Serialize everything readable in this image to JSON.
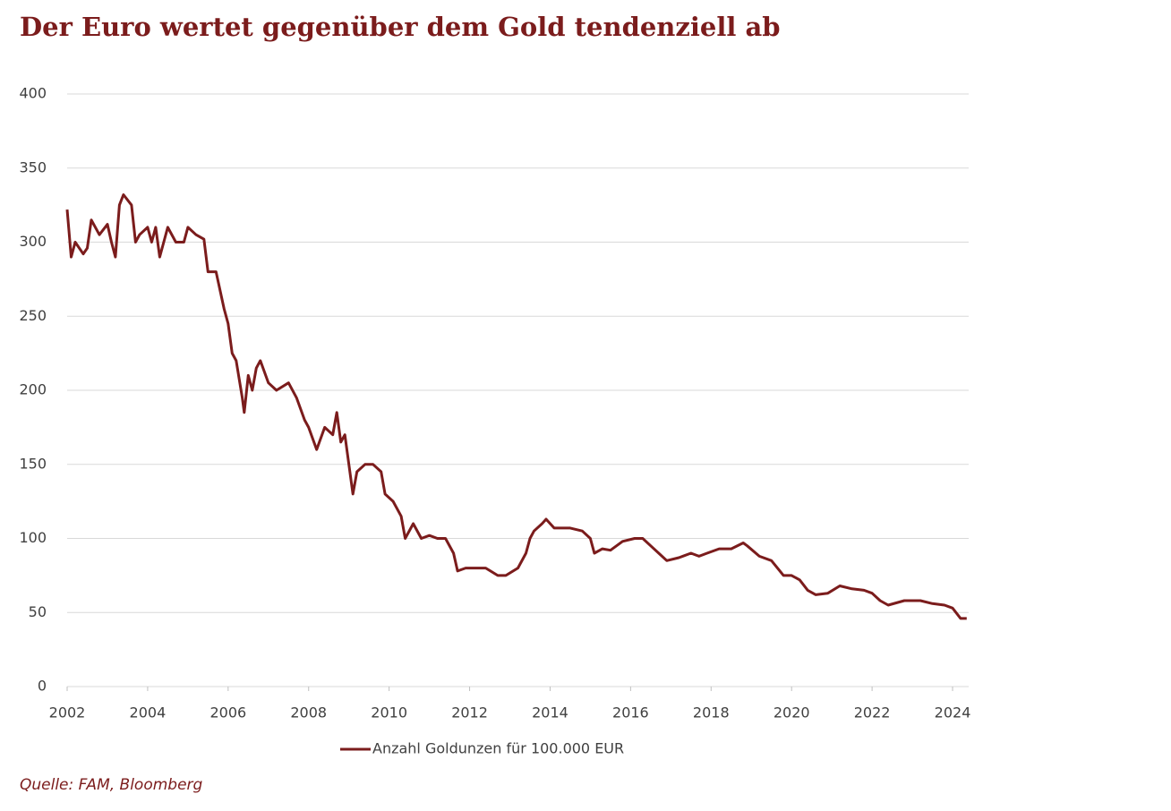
{
  "chart_data": {
    "type": "line",
    "title": "Der Euro wertet gegenüber dem Gold tendenziell ab",
    "source": "Quelle: FAM, Bloomberg",
    "x": [
      2002.0,
      2002.1,
      2002.2,
      2002.4,
      2002.5,
      2002.6,
      2002.8,
      2003.0,
      2003.1,
      2003.2,
      2003.3,
      2003.4,
      2003.6,
      2003.7,
      2003.8,
      2004.0,
      2004.1,
      2004.2,
      2004.3,
      2004.5,
      2004.7,
      2004.9,
      2005.0,
      2005.2,
      2005.4,
      2005.5,
      2005.7,
      2005.9,
      2006.0,
      2006.1,
      2006.2,
      2006.35,
      2006.4,
      2006.5,
      2006.6,
      2006.7,
      2006.8,
      2007.0,
      2007.2,
      2007.5,
      2007.7,
      2007.9,
      2008.0,
      2008.2,
      2008.4,
      2008.6,
      2008.7,
      2008.8,
      2008.9,
      2009.0,
      2009.1,
      2009.2,
      2009.4,
      2009.6,
      2009.8,
      2009.9,
      2010.1,
      2010.3,
      2010.4,
      2010.6,
      2010.8,
      2011.0,
      2011.2,
      2011.4,
      2011.6,
      2011.7,
      2011.9,
      2012.2,
      2012.4,
      2012.7,
      2012.9,
      2013.2,
      2013.4,
      2013.5,
      2013.6,
      2013.8,
      2013.9,
      2014.1,
      2014.5,
      2014.8,
      2015.0,
      2015.1,
      2015.3,
      2015.5,
      2015.8,
      2016.1,
      2016.3,
      2016.5,
      2016.7,
      2016.9,
      2017.2,
      2017.5,
      2017.7,
      2017.9,
      2018.2,
      2018.5,
      2018.8,
      2018.9,
      2019.2,
      2019.5,
      2019.8,
      2020.0,
      2020.2,
      2020.4,
      2020.6,
      2020.9,
      2021.2,
      2021.5,
      2021.8,
      2022.0,
      2022.2,
      2022.4,
      2022.8,
      2023.2,
      2023.5,
      2023.8,
      2024.0,
      2024.2,
      2024.35
    ],
    "series": [
      {
        "name": "Anzahl Goldunzen für 100.000 EUR",
        "color": "#7b1c1c",
        "values": [
          322,
          290,
          300,
          292,
          296,
          315,
          305,
          312,
          300,
          290,
          325,
          332,
          325,
          300,
          305,
          310,
          300,
          310,
          290,
          310,
          300,
          300,
          310,
          305,
          302,
          280,
          280,
          255,
          245,
          225,
          220,
          195,
          185,
          210,
          200,
          215,
          220,
          205,
          200,
          205,
          195,
          180,
          175,
          160,
          175,
          170,
          185,
          165,
          170,
          150,
          130,
          145,
          150,
          150,
          145,
          130,
          125,
          115,
          100,
          110,
          100,
          102,
          100,
          100,
          90,
          78,
          80,
          80,
          80,
          75,
          75,
          80,
          90,
          100,
          105,
          110,
          113,
          107,
          107,
          105,
          100,
          90,
          93,
          92,
          98,
          100,
          100,
          95,
          90,
          85,
          87,
          90,
          88,
          90,
          93,
          93,
          97,
          95,
          88,
          85,
          75,
          75,
          72,
          65,
          62,
          63,
          68,
          66,
          65,
          63,
          58,
          55,
          58,
          58,
          56,
          55,
          53,
          46,
          46
        ]
      }
    ],
    "xlim": [
      2002,
      2024.4
    ],
    "xticks": [
      2002,
      2004,
      2006,
      2008,
      2010,
      2012,
      2014,
      2016,
      2018,
      2020,
      2022,
      2024
    ],
    "ylim": [
      0,
      400
    ],
    "yticks": [
      0,
      50,
      100,
      150,
      200,
      250,
      300,
      350,
      400
    ],
    "grid": true
  }
}
